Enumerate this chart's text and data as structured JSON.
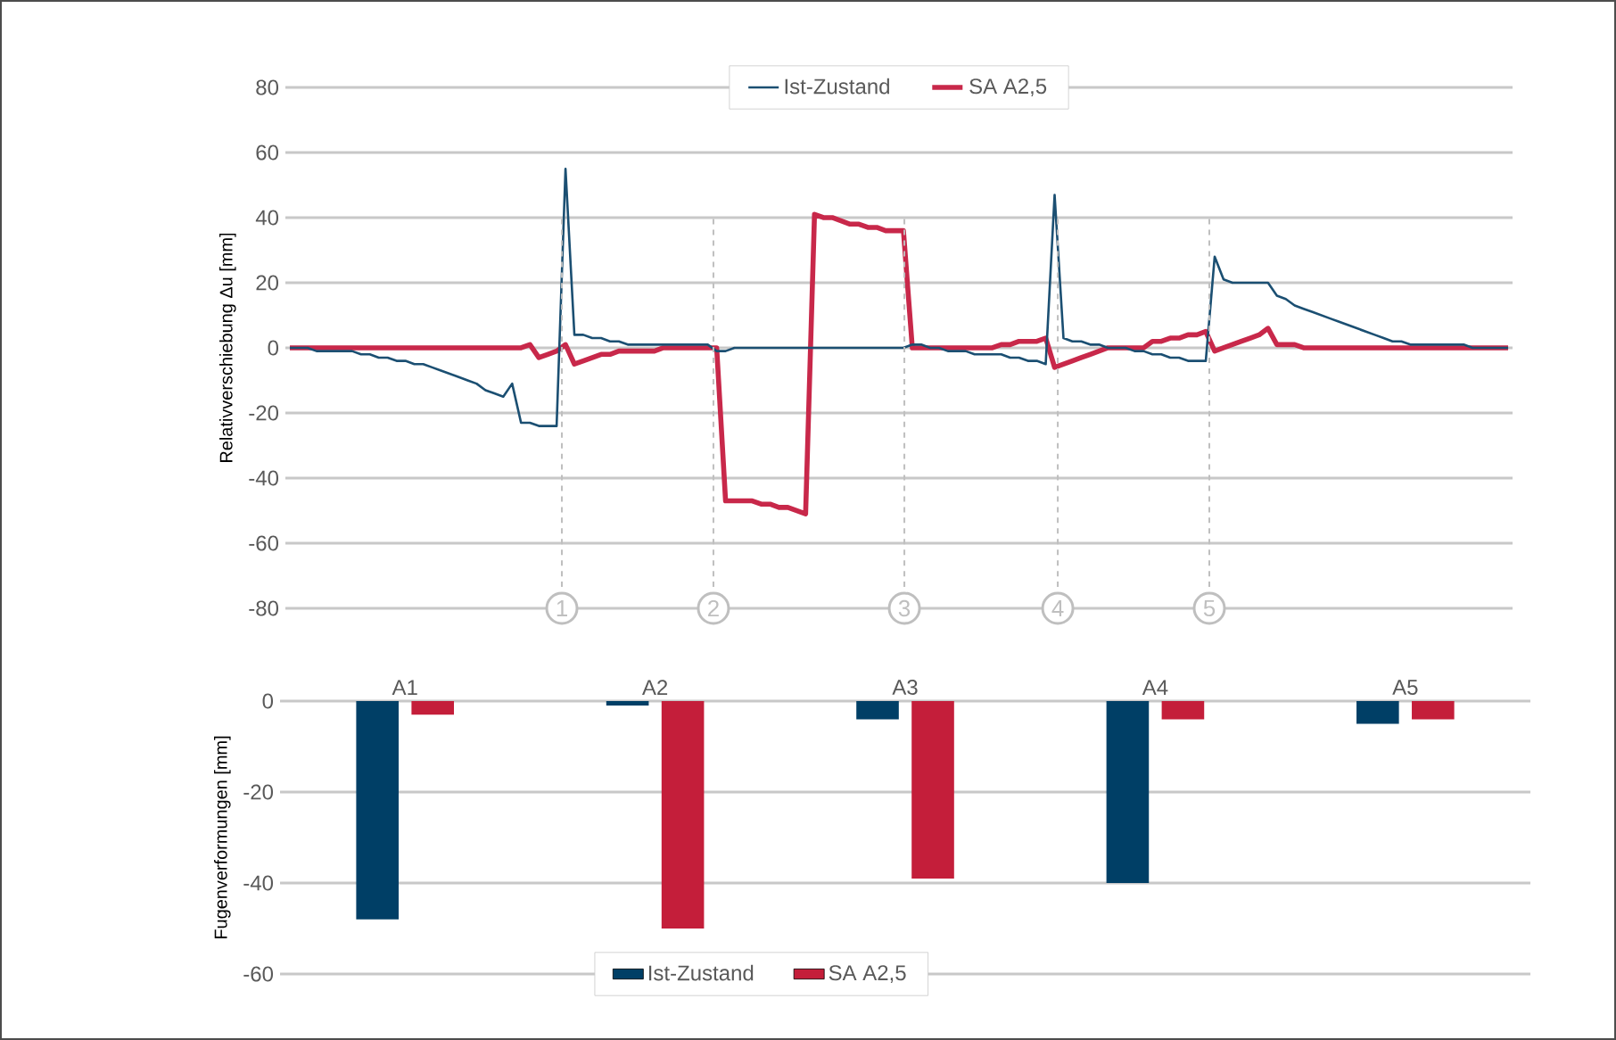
{
  "chart_data": [
    {
      "type": "line",
      "ylabel": "Relativverschiebung Δu [mm]",
      "categories": [
        null,
        null,
        null,
        null,
        null,
        null,
        null,
        null,
        null,
        null,
        null,
        null,
        null,
        null,
        null,
        null,
        null,
        null,
        null,
        null,
        null,
        null,
        null,
        null,
        null,
        null,
        null,
        null,
        null,
        null,
        null,
        null,
        null,
        null,
        null,
        null,
        null,
        null,
        null,
        null,
        null,
        null,
        null,
        null,
        null,
        null,
        null,
        null,
        null,
        null,
        null,
        null,
        null,
        null,
        null,
        null,
        null,
        null,
        null,
        null,
        null,
        null,
        null,
        null,
        null,
        null,
        null,
        null,
        null,
        null,
        null,
        null,
        null,
        null,
        null,
        null,
        null,
        null,
        null,
        null,
        null,
        null,
        null,
        null,
        null,
        null,
        null,
        null,
        null,
        null,
        null,
        null,
        null,
        null,
        null,
        null,
        null,
        null,
        null,
        null,
        null,
        null,
        null,
        null,
        null,
        null,
        null,
        null,
        null,
        null,
        null,
        null,
        null,
        null,
        null,
        null,
        null,
        null,
        null,
        null,
        null,
        null,
        null,
        null,
        null,
        null,
        null,
        null,
        null,
        null,
        null,
        null,
        null,
        null,
        null,
        null,
        null,
        null
      ],
      "ylim": [
        -80,
        80
      ],
      "yticks": [
        -80,
        -60,
        -40,
        -20,
        0,
        20,
        40,
        60,
        80
      ],
      "grid": "y",
      "legend": "top",
      "tick_labels": "y",
      "marker": "none",
      "line_style": "solid",
      "series": [
        {
          "name": "Ist-Zustand",
          "color": "#1b4f72",
          "values": [
            0,
            0,
            0,
            -1,
            -1,
            -1,
            -1,
            -1,
            -2,
            -2,
            -3,
            -3,
            -4,
            -4,
            -5,
            -5,
            -6,
            -7,
            -8,
            -9,
            -10,
            -11,
            -13,
            -14,
            -15,
            -11,
            -23,
            -23,
            -24,
            -24,
            -24,
            55,
            4,
            4,
            3,
            3,
            2,
            2,
            1,
            1,
            1,
            1,
            1,
            1,
            1,
            1,
            1,
            1,
            -1,
            -1,
            0,
            0,
            0,
            0,
            0,
            0,
            0,
            0,
            0,
            0,
            0,
            0,
            0,
            0,
            0,
            0,
            0,
            0,
            0,
            0,
            1,
            1,
            0,
            0,
            -1,
            -1,
            -1,
            -2,
            -2,
            -2,
            -2,
            -3,
            -3,
            -4,
            -4,
            -5,
            47,
            3,
            2,
            2,
            1,
            1,
            0,
            0,
            0,
            -1,
            -1,
            -2,
            -2,
            -3,
            -3,
            -4,
            -4,
            -4,
            28,
            21,
            20,
            20,
            20,
            20,
            20,
            16,
            15,
            13,
            12,
            11,
            10,
            9,
            8,
            7,
            6,
            5,
            4,
            3,
            2,
            2,
            1,
            1,
            1,
            1,
            1,
            1,
            1,
            0,
            0,
            0,
            0,
            0
          ]
        },
        {
          "name": "SA A2,5",
          "color": "#c8284a",
          "values": [
            0,
            0,
            0,
            0,
            0,
            0,
            0,
            0,
            0,
            0,
            0,
            0,
            0,
            0,
            0,
            0,
            0,
            0,
            0,
            0,
            0,
            0,
            0,
            0,
            0,
            0,
            0,
            1,
            -3,
            -2,
            -1,
            1,
            -5,
            -4,
            -3,
            -2,
            -2,
            -1,
            -1,
            -1,
            -1,
            -1,
            0,
            0,
            0,
            0,
            0,
            0,
            0,
            -47,
            -47,
            -47,
            -47,
            -48,
            -48,
            -49,
            -49,
            -50,
            -51,
            41,
            40,
            40,
            39,
            38,
            38,
            37,
            37,
            36,
            36,
            36,
            0,
            0,
            0,
            0,
            0,
            0,
            0,
            0,
            0,
            0,
            1,
            1,
            2,
            2,
            2,
            3,
            -6,
            -5,
            -4,
            -3,
            -2,
            -1,
            0,
            0,
            0,
            0,
            0,
            2,
            2,
            3,
            3,
            4,
            4,
            5,
            -1,
            0,
            1,
            2,
            3,
            4,
            6,
            1,
            1,
            1,
            0,
            0,
            0,
            0,
            0,
            0,
            0,
            0,
            0,
            0,
            0,
            0,
            0,
            0,
            0,
            0,
            0,
            0,
            0,
            0,
            0,
            0,
            0,
            0
          ]
        }
      ],
      "annotations": [
        "1",
        "2",
        "3",
        "4",
        "5"
      ]
    },
    {
      "type": "bar",
      "ylabel": "Fugenverformungen [mm]",
      "categories": [
        "A1",
        "A2",
        "A3",
        "A4",
        "A5"
      ],
      "ylim": [
        -60,
        0
      ],
      "yticks": [
        -60,
        -40,
        -20,
        0
      ],
      "grid": "y",
      "legend": "bottom",
      "series": [
        {
          "name": "Ist-Zustand",
          "color": "#003f66",
          "values": [
            -48,
            -1,
            -4,
            -40,
            -5
          ]
        },
        {
          "name": "SA A2,5",
          "color": "#c41e3a",
          "values": [
            -3,
            -50,
            -39,
            -4,
            -4
          ]
        }
      ]
    }
  ]
}
